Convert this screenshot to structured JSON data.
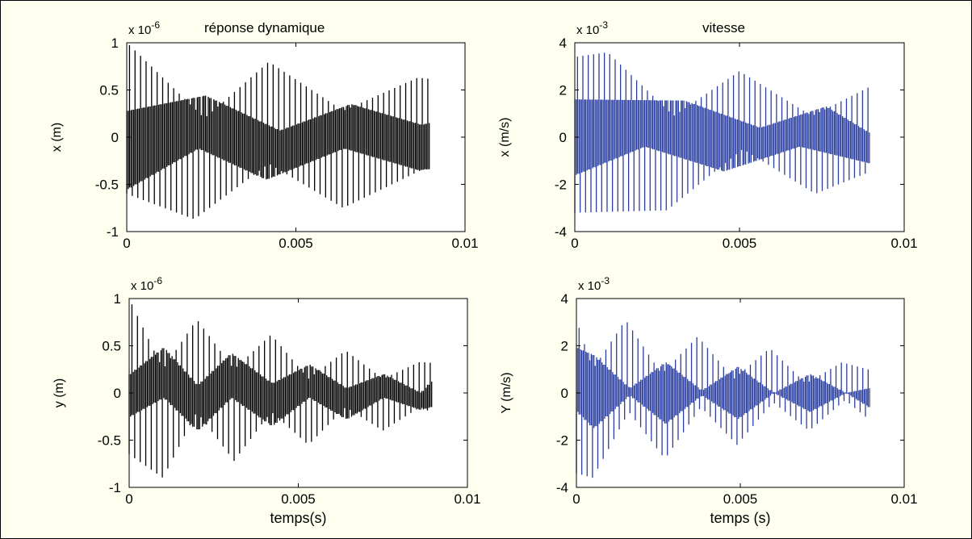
{
  "figure": {
    "background": "#fffff0",
    "border_color": "#000000"
  },
  "chart_data": [
    {
      "type": "line",
      "id": "top-left",
      "title": "réponse dynamique",
      "exponent_prefix": "x 10",
      "exponent": "-6",
      "ylabel": "x  (m)",
      "xlabel": "",
      "xlim": [
        0,
        0.01
      ],
      "ylim": [
        -1,
        1
      ],
      "xticks": [
        0,
        0.005,
        0.01
      ],
      "xtick_labels": [
        "0",
        "0.005",
        "0.01"
      ],
      "yticks": [
        1,
        0.5,
        0,
        -0.5,
        -1
      ],
      "ytick_labels": [
        "1",
        "0.5",
        "0",
        "-0.5",
        "-1"
      ],
      "color": "#000000",
      "line_count": 110,
      "t_end": 0.0089,
      "envelopes": {
        "upper_outer": {
          "t": [
            0,
            0.0001,
            0.0023,
            0.0042,
            0.0064,
            0.0086,
            0.0089
          ],
          "v": [
            1.0,
            0.97,
            0.2,
            0.8,
            0.28,
            0.63,
            0.62
          ]
        },
        "upper_inner": {
          "t": [
            0,
            0.0023,
            0.0045,
            0.0066,
            0.0087,
            0.0089
          ],
          "v": [
            0.28,
            0.44,
            0.07,
            0.35,
            0.13,
            0.15
          ]
        },
        "lower_inner": {
          "t": [
            0,
            0.0021,
            0.0041,
            0.0064,
            0.0086,
            0.0089
          ],
          "v": [
            -0.55,
            -0.12,
            -0.45,
            -0.12,
            -0.35,
            -0.34
          ]
        },
        "lower_outer": {
          "t": [
            0,
            0.002,
            0.0042,
            0.0064,
            0.0087,
            0.0089
          ],
          "v": [
            -0.6,
            -0.87,
            -0.28,
            -0.75,
            -0.35,
            -0.33
          ]
        }
      }
    },
    {
      "type": "line",
      "id": "top-right",
      "title": "vitesse",
      "exponent_prefix": "x 10",
      "exponent": "-3",
      "ylabel": "x  (m/s)",
      "xlabel": "",
      "xlim": [
        0,
        0.01
      ],
      "ylim": [
        -4,
        4
      ],
      "xticks": [
        0,
        0.005,
        0.01
      ],
      "xtick_labels": [
        "0",
        "0.005",
        "0.01"
      ],
      "yticks": [
        4,
        2,
        0,
        -2,
        -4
      ],
      "ytick_labels": [
        "4",
        "2",
        "0",
        "-2",
        "-4"
      ],
      "color": "#2b3fa0",
      "line_count": 110,
      "t_end": 0.0089,
      "envelopes": {
        "upper_outer": {
          "t": [
            0,
            0.001,
            0.003,
            0.005,
            0.0072,
            0.0089
          ],
          "v": [
            3.4,
            3.6,
            0.9,
            2.8,
            0.9,
            2.1
          ]
        },
        "upper_inner": {
          "t": [
            0,
            0.0033,
            0.0056,
            0.0076,
            0.0089
          ],
          "v": [
            1.6,
            1.55,
            0.4,
            1.3,
            0.2
          ]
        },
        "lower_inner": {
          "t": [
            0,
            0.0021,
            0.0045,
            0.0068,
            0.0089
          ],
          "v": [
            -1.6,
            -0.4,
            -1.45,
            -0.4,
            -1.1
          ]
        },
        "lower_outer": {
          "t": [
            0,
            0.0028,
            0.0051,
            0.0073,
            0.0089
          ],
          "v": [
            -3.2,
            -3.1,
            -0.5,
            -2.4,
            -1.5
          ]
        }
      }
    },
    {
      "type": "line",
      "id": "bottom-left",
      "title": "",
      "exponent_prefix": "x 10",
      "exponent": "-6",
      "ylabel": "y  (m)",
      "xlabel": "temps(s)",
      "xlim": [
        0,
        0.01
      ],
      "ylim": [
        -1,
        1
      ],
      "xticks": [
        0,
        0.005,
        0.01
      ],
      "xtick_labels": [
        "0",
        "0.005",
        "0.01"
      ],
      "yticks": [
        1,
        0.5,
        0,
        -0.5,
        -1
      ],
      "ytick_labels": [
        "1",
        "0.5",
        "0",
        "-0.5",
        "-1"
      ],
      "color": "#000000",
      "line_count": 110,
      "t_end": 0.0089,
      "envelopes": {
        "upper_outer": {
          "t": [
            0,
            0.001,
            0.002,
            0.0031,
            0.0042,
            0.0053,
            0.0064,
            0.0075,
            0.0086,
            0.0089
          ],
          "v": [
            1.0,
            0.25,
            0.78,
            0.25,
            0.62,
            0.15,
            0.45,
            0.15,
            0.33,
            0.32
          ]
        },
        "upper_inner": {
          "t": [
            0,
            0.001,
            0.002,
            0.003,
            0.0042,
            0.0053,
            0.0064,
            0.0075,
            0.0086,
            0.0089
          ],
          "v": [
            0.2,
            0.48,
            0.08,
            0.42,
            0.1,
            0.3,
            0.05,
            0.2,
            0.0,
            0.12
          ]
        },
        "lower_inner": {
          "t": [
            0,
            0.001,
            0.002,
            0.003,
            0.0042,
            0.0053,
            0.0064,
            0.0075,
            0.0086,
            0.0089
          ],
          "v": [
            -0.25,
            -0.05,
            -0.4,
            -0.05,
            -0.35,
            -0.05,
            -0.28,
            -0.05,
            -0.18,
            -0.15
          ]
        },
        "lower_outer": {
          "t": [
            0,
            0.001,
            0.002,
            0.0031,
            0.0042,
            0.0053,
            0.0064,
            0.0075,
            0.0086,
            0.0089
          ],
          "v": [
            -0.65,
            -0.9,
            -0.2,
            -0.72,
            -0.2,
            -0.55,
            -0.15,
            -0.4,
            -0.15,
            -0.2
          ]
        }
      }
    },
    {
      "type": "line",
      "id": "bottom-right",
      "title": "",
      "exponent_prefix": "x 10",
      "exponent": "-3",
      "ylabel": "Y  (m/s)",
      "xlabel": "temps (s)",
      "xlim": [
        0,
        0.01
      ],
      "ylim": [
        -4,
        4
      ],
      "xticks": [
        0,
        0.005,
        0.01
      ],
      "xtick_labels": [
        "0",
        "0.005",
        "0.01"
      ],
      "yticks": [
        4,
        2,
        0,
        -2,
        -4
      ],
      "ytick_labels": [
        "4",
        "2",
        "0",
        "-2",
        "-4"
      ],
      "color": "#2b3fa0",
      "line_count": 110,
      "t_end": 0.0089,
      "envelopes": {
        "upper_outer": {
          "t": [
            0,
            0.0005,
            0.0015,
            0.0026,
            0.0037,
            0.0048,
            0.0059,
            0.007,
            0.0081,
            0.0089
          ],
          "v": [
            3.1,
            1.0,
            3.1,
            0.8,
            2.4,
            0.6,
            1.9,
            0.4,
            1.3,
            1.0
          ]
        },
        "upper_inner": {
          "t": [
            0,
            0.0005,
            0.0016,
            0.0027,
            0.0038,
            0.0049,
            0.006,
            0.0071,
            0.0082,
            0.0089
          ],
          "v": [
            1.9,
            1.6,
            0.2,
            1.3,
            0.1,
            1.1,
            0.0,
            0.8,
            0.0,
            0.2
          ]
        },
        "lower_inner": {
          "t": [
            0,
            0.0005,
            0.0016,
            0.0027,
            0.0038,
            0.0049,
            0.006,
            0.0071,
            0.0082,
            0.0089
          ],
          "v": [
            -0.8,
            -1.5,
            -0.1,
            -1.3,
            -0.1,
            -1.1,
            0.0,
            -0.8,
            0.0,
            -0.6
          ]
        },
        "lower_outer": {
          "t": [
            0,
            0.0005,
            0.0016,
            0.0027,
            0.0038,
            0.0049,
            0.006,
            0.0071,
            0.0082,
            0.0089
          ],
          "v": [
            -3.4,
            -3.6,
            -0.8,
            -2.8,
            -0.6,
            -2.2,
            -0.4,
            -1.6,
            -0.3,
            -1.1
          ]
        }
      }
    }
  ]
}
